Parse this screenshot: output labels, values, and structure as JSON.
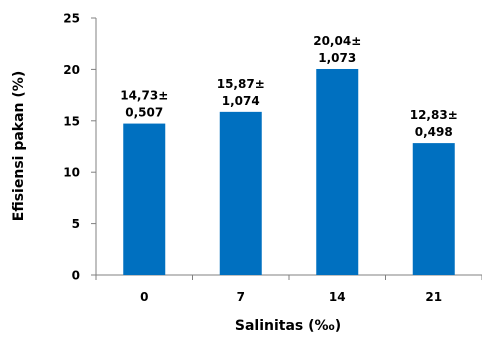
{
  "chart_data": {
    "type": "bar",
    "xlabel": "Salinitas (‰)",
    "ylabel": "Efisiensi pakan (%)",
    "categories": [
      "0",
      "7",
      "14",
      "21"
    ],
    "values": [
      14.73,
      15.87,
      20.04,
      12.83
    ],
    "data_labels": [
      [
        "14,73±",
        "0,507"
      ],
      [
        "15,87±",
        "1,074"
      ],
      [
        "20,04±",
        "1,073"
      ],
      [
        "12,83±",
        "0,498"
      ]
    ],
    "ylim": [
      0,
      25
    ],
    "yticks": [
      0,
      5,
      10,
      15,
      20,
      25
    ],
    "ytick_labels": [
      "0",
      "5",
      "10",
      "15",
      "20",
      "25"
    ],
    "grid": false,
    "legend": "none",
    "bar_color": "#0070C0",
    "axis_color": "#808080"
  }
}
